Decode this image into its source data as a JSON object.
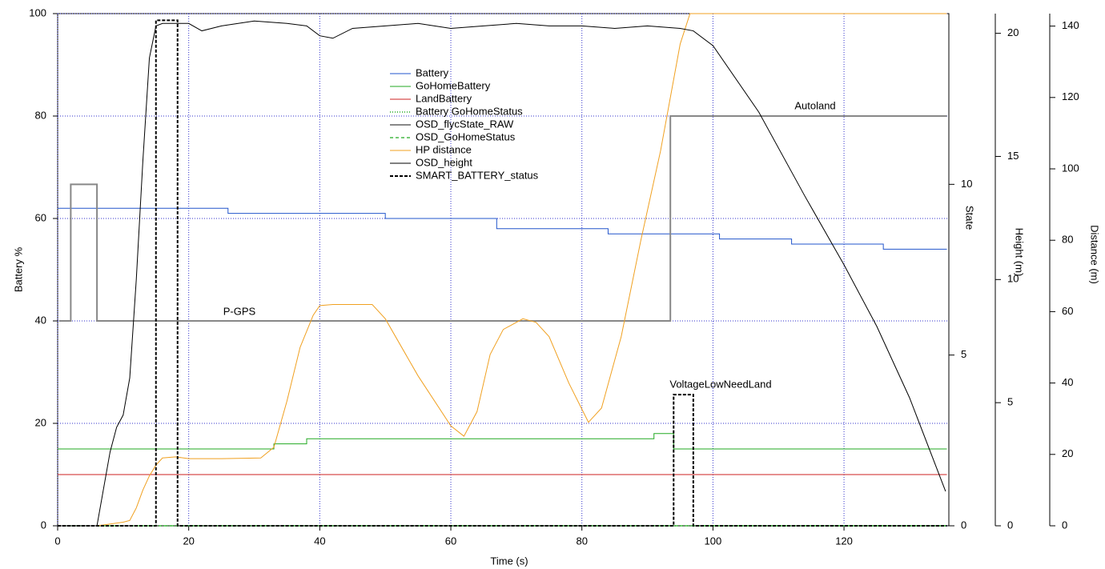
{
  "chart_data": {
    "type": "line",
    "xlabel": "Time (s)",
    "xlim": [
      0,
      136
    ],
    "xticks": [
      0,
      20,
      40,
      60,
      80,
      100,
      120
    ],
    "ylabel": "Battery %",
    "ylim": [
      0,
      100
    ],
    "yticks": [
      0,
      20,
      40,
      60,
      80,
      100
    ],
    "y2label": "State",
    "y2lim": [
      0,
      15
    ],
    "y2ticks": [
      0,
      5,
      10
    ],
    "y3label": "Height (m)",
    "y3lim": [
      0,
      20.8
    ],
    "y3ticks": [
      0,
      5,
      10,
      15,
      20
    ],
    "y4label": "Distance (m)",
    "y4lim": [
      0,
      143.5
    ],
    "y4ticks": [
      0,
      20,
      40,
      60,
      80,
      100,
      120,
      140
    ],
    "grid": true,
    "annotations": [
      "P-GPS",
      "Autoland",
      "VoltageLowNeedLand"
    ],
    "series": [
      {
        "name": "Battery",
        "color": "#2255cc",
        "style": "solid",
        "axis": "y",
        "x": [
          0,
          26,
          26,
          50,
          50,
          67,
          67,
          84,
          84,
          101,
          101,
          112,
          112,
          126,
          126,
          135.7
        ],
        "values": [
          62,
          62,
          61,
          61,
          60,
          60,
          58,
          58,
          57,
          57,
          56,
          56,
          55,
          55,
          54,
          54
        ]
      },
      {
        "name": "GoHomeBattery",
        "color": "#22aa22",
        "style": "solid",
        "axis": "y",
        "x": [
          0,
          33,
          33,
          38,
          38,
          91,
          91,
          94,
          94,
          135.7
        ],
        "values": [
          15,
          15,
          16,
          16,
          17,
          17,
          18,
          18,
          15,
          15
        ]
      },
      {
        "name": "LandBattery",
        "color": "#cc2222",
        "style": "solid",
        "axis": "y",
        "x": [
          0,
          135.7
        ],
        "values": [
          10,
          10
        ]
      },
      {
        "name": "Battery GoHomeStatus",
        "color": "#22aa22",
        "style": "dotted",
        "axis": "y",
        "x": [
          0,
          135.7
        ],
        "values": [
          0,
          0
        ]
      },
      {
        "name": "OSD_flycState_RAW",
        "color": "#888888",
        "style": "thick",
        "axis": "y2",
        "x": [
          0.2,
          2,
          2,
          6,
          6,
          93.5,
          93.5,
          135.7
        ],
        "values": [
          6,
          6,
          10,
          10,
          6,
          6,
          12,
          12
        ]
      },
      {
        "name": "OSD_GoHomeStatus",
        "color": "#22aa22",
        "style": "dashed",
        "axis": "y",
        "x": [
          0,
          135.7
        ],
        "values": [
          0,
          0
        ]
      },
      {
        "name": "HP distance",
        "color": "#f0a020",
        "style": "solid",
        "axis": "y4",
        "x": [
          0,
          6,
          10,
          11,
          12,
          13,
          14,
          15,
          16,
          18,
          20,
          25,
          31,
          33,
          35,
          37,
          39,
          40,
          42,
          48,
          50,
          55,
          60,
          62,
          64,
          66,
          68,
          71,
          73,
          75,
          78,
          81,
          83,
          86,
          89,
          92,
          95,
          96.5,
          135.7
        ],
        "values": [
          0,
          0,
          1,
          1.5,
          5,
          10,
          14,
          17,
          19,
          19.3,
          18.8,
          18.8,
          19,
          22,
          35,
          50,
          59,
          61.7,
          62,
          62,
          58,
          42,
          28,
          25.1,
          32,
          48,
          55,
          58,
          57,
          53,
          40,
          29,
          33,
          53,
          80,
          105,
          135,
          143.5,
          143.5
        ]
      },
      {
        "name": "OSD_height",
        "color": "#000000",
        "style": "solid",
        "axis": "y3",
        "x": [
          0,
          6,
          7,
          8,
          9,
          10,
          11,
          12,
          13,
          14,
          15,
          16,
          20,
          22,
          25,
          30,
          35,
          38,
          40,
          42,
          45,
          50,
          55,
          60,
          65,
          70,
          75,
          80,
          85,
          90,
          95,
          97,
          100,
          107,
          114,
          120,
          125,
          130,
          135.5
        ],
        "values": [
          0,
          0,
          1.5,
          3,
          4,
          4.5,
          6,
          10,
          14.8,
          19,
          20.3,
          20.4,
          20.4,
          20.1,
          20.3,
          20.5,
          20.4,
          20.3,
          19.9,
          19.8,
          20.2,
          20.3,
          20.4,
          20.2,
          20.3,
          20.4,
          20.3,
          20.3,
          20.2,
          20.3,
          20.2,
          20.1,
          19.5,
          16.8,
          13.4,
          10.6,
          8.1,
          5.2,
          1.4
        ]
      },
      {
        "name": "SMART_BATTERY_status",
        "color": "#000000",
        "style": "thickdashed",
        "axis": "y",
        "x": [
          0,
          15,
          15,
          18.3,
          18.3,
          94,
          94,
          97,
          97,
          135.7
        ],
        "values": [
          0,
          0,
          98.7,
          98.7,
          0,
          0,
          25.6,
          25.6,
          0,
          0
        ]
      }
    ]
  }
}
